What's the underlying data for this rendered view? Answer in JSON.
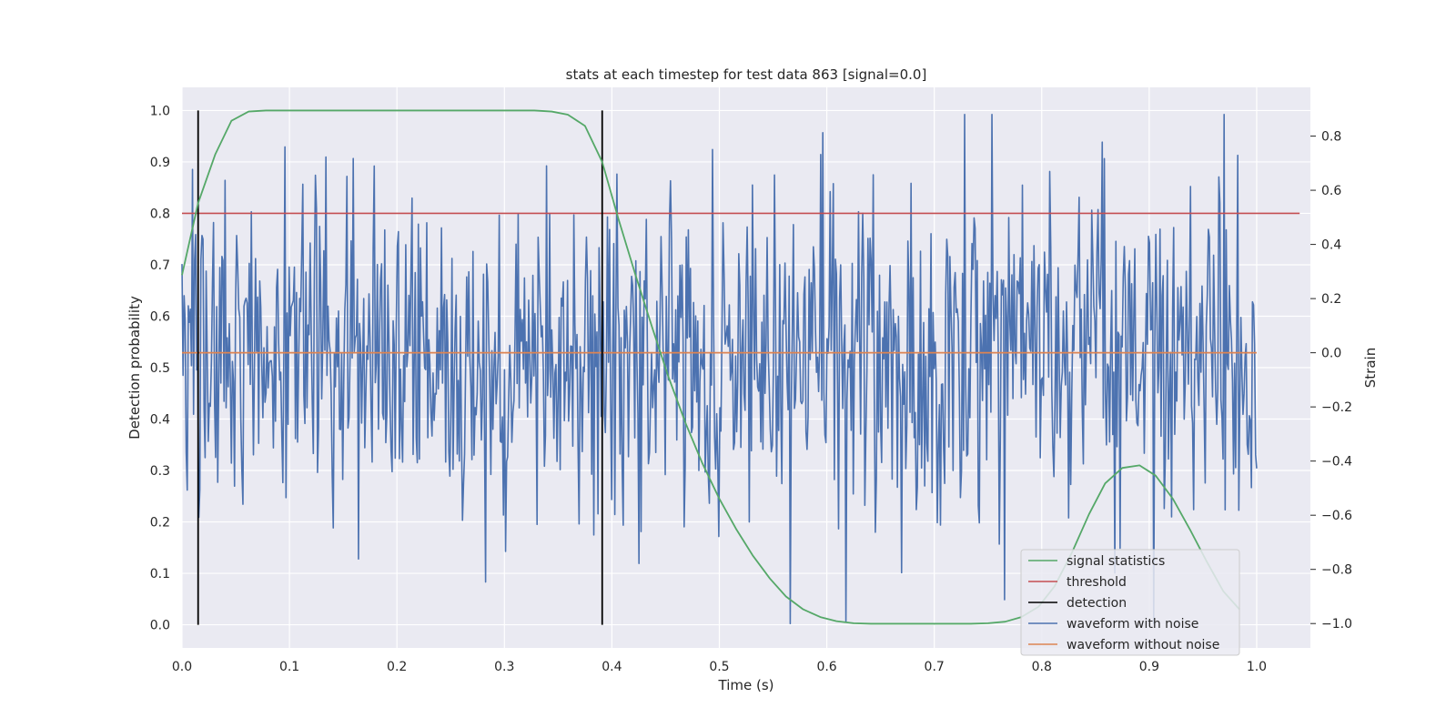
{
  "chart_data": {
    "type": "line",
    "title": "stats at each timestep for test data 863 [signal=0.0]",
    "xlabel": "Time (s)",
    "ylabel": "Detection probability",
    "y2label": "Strain",
    "xlim": [
      0.0,
      1.05
    ],
    "ylim": [
      -0.045,
      1.045
    ],
    "y2lim": [
      -1.09,
      0.98
    ],
    "x_ticks": [
      "0.0",
      "0.1",
      "0.2",
      "0.3",
      "0.4",
      "0.5",
      "0.6",
      "0.7",
      "0.8",
      "0.9",
      "1.0"
    ],
    "y_ticks": [
      "0.0",
      "0.1",
      "0.2",
      "0.3",
      "0.4",
      "0.5",
      "0.6",
      "0.7",
      "0.8",
      "0.9",
      "1.0"
    ],
    "y2_ticks": [
      "−1.0",
      "−0.8",
      "−0.6",
      "−0.4",
      "−0.2",
      "0.0",
      "0.2",
      "0.4",
      "0.6",
      "0.8"
    ],
    "grid": true,
    "legend_position": "bottom-right",
    "series": [
      {
        "name": "signal statistics",
        "axis": "left",
        "color": "#55a868",
        "x": [
          0.0,
          0.015,
          0.031,
          0.046,
          0.062,
          0.078,
          0.094,
          0.109,
          0.125,
          0.141,
          0.156,
          0.172,
          0.188,
          0.203,
          0.219,
          0.234,
          0.25,
          0.266,
          0.281,
          0.297,
          0.312,
          0.328,
          0.344,
          0.359,
          0.375,
          0.391,
          0.406,
          0.422,
          0.438,
          0.453,
          0.469,
          0.484,
          0.5,
          0.516,
          0.531,
          0.547,
          0.562,
          0.578,
          0.594,
          0.609,
          0.625,
          0.641,
          0.656,
          0.672,
          0.688,
          0.703,
          0.719,
          0.734,
          0.75,
          0.766,
          0.781,
          0.797,
          0.812,
          0.828,
          0.844,
          0.859,
          0.875,
          0.891,
          0.906,
          0.922,
          0.938,
          0.953,
          0.969,
          0.984
        ],
        "values": [
          0.68,
          0.82,
          0.915,
          0.98,
          0.998,
          1.0,
          1.0,
          1.0,
          1.0,
          1.0,
          1.0,
          1.0,
          1.0,
          1.0,
          1.0,
          1.0,
          1.0,
          1.0,
          1.0,
          1.0,
          1.0,
          1.0,
          0.998,
          0.992,
          0.97,
          0.9,
          0.79,
          0.68,
          0.575,
          0.48,
          0.39,
          0.315,
          0.245,
          0.185,
          0.135,
          0.09,
          0.055,
          0.03,
          0.015,
          0.007,
          0.003,
          0.002,
          0.002,
          0.002,
          0.002,
          0.002,
          0.002,
          0.002,
          0.003,
          0.006,
          0.015,
          0.035,
          0.075,
          0.14,
          0.215,
          0.275,
          0.305,
          0.31,
          0.29,
          0.245,
          0.185,
          0.125,
          0.065,
          0.03
        ]
      },
      {
        "name": "threshold",
        "axis": "left",
        "color": "#c44e52",
        "x": [
          0.0,
          1.04
        ],
        "values": [
          0.8,
          0.8
        ]
      },
      {
        "name": "detection",
        "axis": "left",
        "color": "#000000",
        "segments": [
          {
            "x": 0.015,
            "y": [
              0.0,
              1.0
            ]
          },
          {
            "x": 0.391,
            "y": [
              0.0,
              1.0
            ]
          }
        ]
      },
      {
        "name": "waveform with noise",
        "axis": "right",
        "color": "#4c72b0",
        "x_range": [
          0.0,
          1.0
        ],
        "n_points": 1024,
        "amplitude_range": [
          -1.0,
          0.88
        ]
      },
      {
        "name": "waveform without noise",
        "axis": "right",
        "color": "#dd8452",
        "x": [
          0.0,
          1.0
        ],
        "values": [
          0.0,
          0.0
        ]
      }
    ]
  }
}
